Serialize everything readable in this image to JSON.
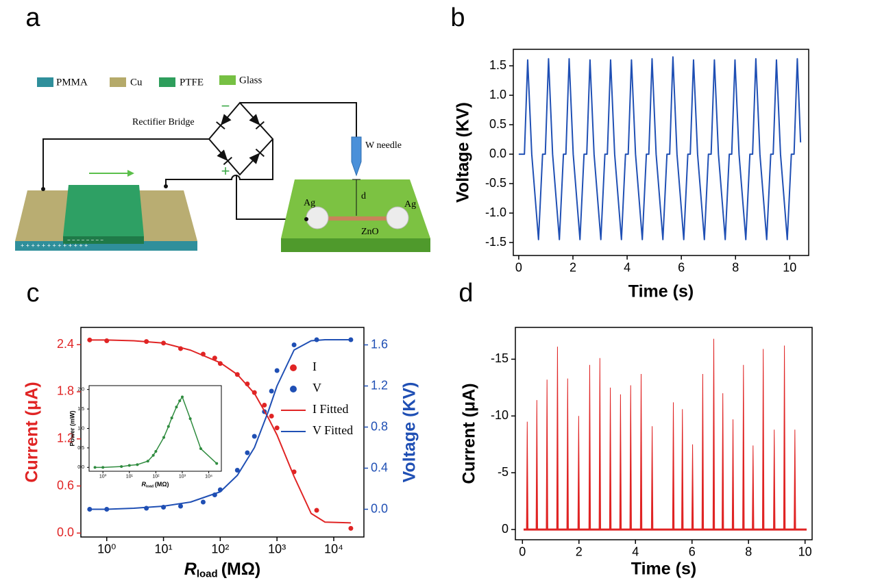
{
  "panel_labels": [
    "a",
    "b",
    "c",
    "d"
  ],
  "diagram": {
    "legend": [
      "PMMA",
      "Cu",
      "PTFE",
      "Glass"
    ],
    "rectifier": "Rectifier Bridge",
    "needle": "W needle",
    "electrodes": [
      "Ag",
      "Ag"
    ],
    "nanowire": "ZnO",
    "gap": "d",
    "terminals": [
      "−",
      "+"
    ],
    "charges": [
      "+ + + + + + + + + + + + +",
      "− − − − − − − −"
    ]
  },
  "chart_data": [
    {
      "type": "line",
      "x_label": "Time (s)",
      "y_label": "Voltage (KV)",
      "x": [
        0.0,
        0.21,
        0.33,
        0.48,
        0.73,
        0.88,
        0.98,
        1.1,
        1.25,
        1.5,
        1.65,
        1.74,
        1.86,
        2.01,
        2.26,
        2.41,
        2.51,
        2.63,
        2.78,
        3.03,
        3.18,
        3.27,
        3.39,
        3.54,
        3.79,
        3.94,
        4.04,
        4.16,
        4.31,
        4.56,
        4.71,
        4.8,
        4.92,
        5.07,
        5.32,
        5.47,
        5.57,
        5.69,
        5.84,
        6.09,
        6.24,
        6.33,
        6.45,
        6.6,
        6.85,
        7.0,
        7.1,
        7.22,
        7.37,
        7.62,
        7.77,
        7.86,
        7.98,
        8.13,
        8.38,
        8.53,
        8.63,
        8.75,
        8.9,
        9.15,
        9.3,
        9.39,
        9.51,
        9.66,
        9.91,
        10.06,
        10.16,
        10.28,
        10.4
      ],
      "series": [
        {
          "color": "#1f4fb4",
          "values": [
            0.0,
            0.0,
            1.6,
            0.0,
            -1.45,
            0.0,
            0.0,
            1.62,
            0.0,
            -1.45,
            0.0,
            0.0,
            1.62,
            0.0,
            -1.45,
            0.0,
            0.0,
            1.6,
            0.0,
            -1.45,
            0.0,
            0.0,
            1.6,
            0.0,
            -1.45,
            0.0,
            0.0,
            1.6,
            0.0,
            -1.45,
            0.0,
            0.0,
            1.62,
            0.0,
            -1.45,
            0.0,
            0.0,
            1.65,
            0.0,
            -1.45,
            0.0,
            0.0,
            1.6,
            0.0,
            -1.45,
            0.0,
            0.0,
            1.6,
            0.0,
            -1.45,
            0.0,
            0.0,
            1.6,
            0.0,
            -1.45,
            0.0,
            0.0,
            1.62,
            0.0,
            -1.45,
            0.0,
            0.0,
            1.6,
            0.0,
            -1.45,
            0.0,
            0.0,
            1.62,
            0.2
          ]
        }
      ],
      "xlim": [
        -0.2,
        10.7
      ],
      "ylim": [
        -1.72,
        1.78
      ],
      "xticks": [
        0,
        2,
        4,
        6,
        8,
        10
      ],
      "yticks": [
        -1.5,
        {
          "value": -1,
          "label": "-1.0"
        },
        -0.5,
        {
          "value": 0,
          "label": "0.0"
        },
        0.5,
        {
          "value": 1,
          "label": "1.0"
        },
        1.5
      ]
    },
    {
      "type": "scatter",
      "log_x": true,
      "x_label": "R",
      "x_label_sub": "load",
      "x_label_unit": "(MΩ)",
      "y_label": "Current (μA)",
      "y2_label": "Voltage (KV)",
      "series": [
        {
          "name": "I",
          "color": "#e02424",
          "style": "marker",
          "x": [
            0.5,
            1,
            5,
            10,
            20,
            50,
            80,
            100,
            200,
            300,
            400,
            600,
            800,
            1000,
            2000,
            5000,
            20000
          ],
          "values": [
            2.46,
            2.45,
            2.44,
            2.42,
            2.35,
            2.28,
            2.23,
            2.16,
            2.02,
            1.9,
            1.79,
            1.63,
            1.49,
            1.34,
            0.78,
            0.29,
            0.06
          ]
        },
        {
          "name": "V",
          "color": "#1f4fb4",
          "style": "marker",
          "axis": "y2",
          "x": [
            0.5,
            1,
            5,
            10,
            20,
            50,
            80,
            100,
            200,
            300,
            400,
            600,
            800,
            1000,
            2000,
            5000,
            20000
          ],
          "values": [
            0.0,
            0.0,
            0.01,
            0.02,
            0.03,
            0.07,
            0.14,
            0.19,
            0.38,
            0.55,
            0.71,
            0.95,
            1.15,
            1.35,
            1.6,
            1.65,
            1.65
          ]
        },
        {
          "name": "I Fitted",
          "color": "#e02424",
          "style": "line",
          "x": [
            0.5,
            1,
            3,
            10,
            30,
            100,
            200,
            400,
            700,
            1000,
            2000,
            4000,
            7000,
            20000
          ],
          "values": [
            2.46,
            2.46,
            2.45,
            2.42,
            2.33,
            2.17,
            2.02,
            1.78,
            1.47,
            1.25,
            0.72,
            0.25,
            0.14,
            0.13
          ]
        },
        {
          "name": "V Fitted",
          "color": "#1f4fb4",
          "style": "line",
          "axis": "y2",
          "x": [
            0.5,
            1,
            3,
            10,
            30,
            100,
            200,
            400,
            700,
            1000,
            2000,
            4000,
            7000,
            20000
          ],
          "values": [
            0.0,
            0.0,
            0.01,
            0.03,
            0.07,
            0.17,
            0.33,
            0.6,
            0.95,
            1.2,
            1.55,
            1.64,
            1.65,
            1.65
          ]
        }
      ],
      "xlim": [
        0.35,
        34000
      ],
      "ylim": [
        -0.05,
        2.62
      ],
      "y2lim": [
        -0.27,
        1.77
      ],
      "xticks": [
        {
          "value": 1,
          "label": "10⁰"
        },
        {
          "value": 10,
          "label": "10¹"
        },
        {
          "value": 100,
          "label": "10²"
        },
        {
          "value": 1000,
          "label": "10³"
        },
        {
          "value": 10000,
          "label": "10⁴"
        }
      ],
      "yticks": [
        {
          "value": 0,
          "label": "0.0"
        },
        0.6,
        1.2,
        1.8,
        2.4
      ],
      "y2ticks": [
        {
          "value": 0,
          "label": "0.0"
        },
        0.4,
        0.8,
        1.2,
        1.6
      ],
      "inset": {
        "type": "line",
        "log_x": true,
        "y_label": "Power (mW)",
        "x_label": "R",
        "x_label_sub": "load",
        "x_label_unit": "(MΩ)",
        "color": "#2e8b3e",
        "x": [
          0.5,
          1,
          5,
          10,
          20,
          50,
          80,
          100,
          200,
          300,
          400,
          600,
          800,
          1000,
          2000,
          5000,
          20000
        ],
        "values": [
          0.0,
          0.0,
          0.02,
          0.05,
          0.07,
          0.16,
          0.31,
          0.41,
          0.77,
          1.05,
          1.27,
          1.55,
          1.71,
          1.81,
          1.25,
          0.48,
          0.1
        ],
        "xlim": [
          0.3,
          30000
        ],
        "ylim": [
          -0.1,
          2.1
        ],
        "xticks": [
          {
            "value": 1,
            "label": "10⁰"
          },
          {
            "value": 10,
            "label": "10¹"
          },
          {
            "value": 100,
            "label": "10²"
          },
          {
            "value": 1000,
            "label": "10³"
          },
          {
            "value": 10000,
            "label": "10⁴"
          }
        ],
        "yticks": [
          {
            "value": 0,
            "label": "0.0"
          },
          0.5,
          {
            "value": 1,
            "label": "1.0"
          },
          1.5,
          {
            "value": 2,
            "label": "2.0"
          }
        ]
      }
    },
    {
      "type": "spike",
      "x_label": "Time (s)",
      "y_label": "Current (μA)",
      "color": "#e02424",
      "x": [
        0.17,
        0.51,
        0.87,
        1.24,
        1.6,
        1.99,
        2.38,
        2.74,
        3.11,
        3.47,
        3.83,
        4.2,
        4.59,
        5.34,
        5.66,
        6.02,
        6.38,
        6.77,
        7.09,
        7.45,
        7.82,
        8.16,
        8.52,
        8.91,
        9.27,
        9.64
      ],
      "values": [
        -9.5,
        -11.4,
        -13.2,
        -16.1,
        -13.3,
        -10.0,
        -14.5,
        -15.1,
        -12.5,
        -11.9,
        -12.7,
        -13.7,
        -9.1,
        -11.2,
        -10.6,
        -7.5,
        -13.7,
        -16.8,
        -12.0,
        -9.7,
        -14.5,
        -7.4,
        -15.9,
        -8.8,
        -16.2,
        -8.8
      ],
      "xlim": [
        -0.25,
        10.25
      ],
      "ylim": [
        0.9,
        -17.8
      ],
      "xticks": [
        0,
        2,
        4,
        6,
        8,
        10
      ],
      "yticks": [
        0,
        -5,
        -10,
        -15
      ]
    }
  ]
}
